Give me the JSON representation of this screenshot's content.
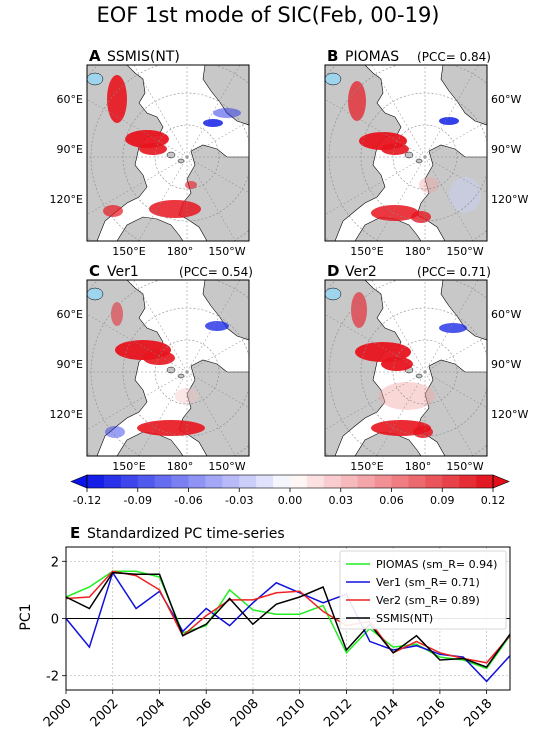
{
  "figure_title": "EOF 1st mode of SIC(Feb, 00-19)",
  "colors": {
    "land": "#c8c8c8",
    "ocean": "#ffffff",
    "lake": "#9ed4ec",
    "positive": "#e8141e",
    "negative": "#1e2ce8"
  },
  "maps": [
    {
      "letter": "A",
      "name": "SSMIS(NT)",
      "pcc": ""
    },
    {
      "letter": "B",
      "name": "PIOMAS",
      "pcc": "(PCC= 0.84)"
    },
    {
      "letter": "C",
      "name": "Ver1",
      "pcc": "(PCC= 0.54)"
    },
    {
      "letter": "D",
      "name": "Ver2",
      "pcc": "(PCC= 0.71)"
    }
  ],
  "map_labels": {
    "lat_60": "60°E",
    "lat_90": "90°E",
    "lat_120": "120°E",
    "lon_150e": "150°E",
    "lon_180": "180°",
    "lon_150w": "150°W",
    "right_60": "60°W",
    "right_90": "90°W",
    "right_120": "120°W"
  },
  "colorbar": {
    "min": -0.12,
    "max": 0.12,
    "ticks": [
      "-0.12",
      "-0.09",
      "-0.06",
      "-0.03",
      "0.00",
      "0.03",
      "0.06",
      "0.09",
      "0.12"
    ],
    "levels": 24
  },
  "chart_data": {
    "type": "line",
    "panel_letter": "E",
    "title": "Standardized PC time-series",
    "ylabel": "PC1",
    "xlabel": "",
    "xlim": [
      2000,
      2019
    ],
    "ylim": [
      -2.5,
      2.5
    ],
    "xticks": [
      2000,
      2002,
      2004,
      2006,
      2008,
      2010,
      2012,
      2014,
      2016,
      2018
    ],
    "yticks": [
      -2,
      0,
      2
    ],
    "grid": true,
    "legend_position": "top-right",
    "x": [
      2000,
      2001,
      2002,
      2003,
      2004,
      2005,
      2006,
      2007,
      2008,
      2009,
      2010,
      2011,
      2012,
      2013,
      2014,
      2015,
      2016,
      2017,
      2018,
      2019
    ],
    "series": [
      {
        "name": "PIOMAS",
        "label": "PIOMAS (sm_R= 0.94)",
        "color": "#22ee22",
        "values": [
          0.75,
          1.1,
          1.65,
          1.65,
          1.45,
          -0.5,
          -0.25,
          1.0,
          0.3,
          0.15,
          0.15,
          0.45,
          -1.2,
          -0.35,
          -1.0,
          -0.9,
          -1.35,
          -1.45,
          -1.75,
          -0.6
        ]
      },
      {
        "name": "Ver1",
        "label": "Ver1 (sm_R= 0.71)",
        "color": "#1111dd",
        "values": [
          0.0,
          -1.0,
          1.6,
          0.35,
          0.95,
          -0.45,
          0.35,
          -0.25,
          0.55,
          1.25,
          0.9,
          0.55,
          0.85,
          -0.8,
          -1.1,
          -0.95,
          -1.25,
          -1.35,
          -2.2,
          -1.3
        ]
      },
      {
        "name": "Ver2",
        "label": "Ver2 (sm_R= 0.89)",
        "color": "#ee2222",
        "values": [
          0.7,
          0.75,
          1.65,
          1.5,
          1.0,
          -0.6,
          0.1,
          0.65,
          0.65,
          0.9,
          0.95,
          0.25,
          -0.25,
          -0.1,
          -1.2,
          -0.8,
          -1.2,
          -1.4,
          -1.55,
          -0.6
        ]
      },
      {
        "name": "SSMIS(NT)",
        "label": "SSMIS(NT)",
        "color": "#000000",
        "values": [
          0.75,
          0.35,
          1.6,
          1.55,
          1.55,
          -0.6,
          -0.2,
          0.7,
          -0.2,
          0.5,
          0.75,
          1.1,
          -1.1,
          -0.2,
          -1.2,
          -0.6,
          -1.45,
          -1.4,
          -1.7,
          -0.55
        ]
      }
    ]
  }
}
